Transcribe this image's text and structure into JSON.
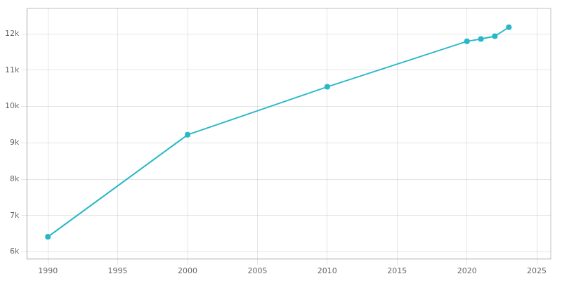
{
  "chart_data": {
    "type": "line",
    "x": [
      1990,
      2000,
      2010,
      2020,
      2021,
      2022,
      2023
    ],
    "values": [
      6413,
      9222,
      10542,
      11794,
      11860,
      11935,
      12183
    ],
    "color": "#29b8c8",
    "marker": "circle",
    "xlim": [
      1988.5,
      2026
    ],
    "xticks": [
      1990,
      1995,
      2000,
      2005,
      2010,
      2015,
      2020,
      2025
    ],
    "ylim": [
      5800,
      12700
    ],
    "yticks": [
      {
        "value": 6000,
        "label": "6k"
      },
      {
        "value": 7000,
        "label": "7k"
      },
      {
        "value": 8000,
        "label": "8k"
      },
      {
        "value": 9000,
        "label": "9k"
      },
      {
        "value": 10000,
        "label": "10k"
      },
      {
        "value": 11000,
        "label": "11k"
      },
      {
        "value": 12000,
        "label": "12k"
      }
    ],
    "grid": true
  }
}
